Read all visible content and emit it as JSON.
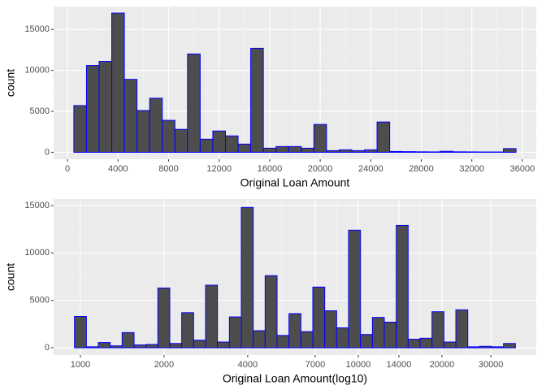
{
  "chart_data": [
    {
      "type": "histogram",
      "xlabel": "Original Loan Amount",
      "ylabel": "count",
      "bins": [
        500,
        1500,
        2500,
        3500,
        4500,
        5500,
        6500,
        7500,
        8500,
        9500,
        10500,
        11500,
        12500,
        13500,
        14500,
        15500,
        16500,
        17500,
        18500,
        19500,
        20500,
        21500,
        22500,
        23500,
        24500,
        25500,
        26500,
        27500,
        28500,
        29500,
        30500,
        31500,
        32500,
        33500,
        34500,
        35500
      ],
      "values": [
        5700,
        10600,
        11100,
        17000,
        8900,
        5100,
        6600,
        3900,
        2800,
        12000,
        1600,
        2600,
        2000,
        1000,
        12700,
        500,
        700,
        700,
        500,
        3400,
        200,
        300,
        200,
        300,
        3700,
        100,
        80,
        60,
        50,
        120,
        60,
        50,
        40,
        40,
        450
      ],
      "color": "#4d4d4d",
      "edgecolor": "#0000ff",
      "log_x": false,
      "grid": true,
      "xlim": [
        -1100,
        37100
      ],
      "ylim": [
        -850,
        17800
      ],
      "xticks": [
        0,
        4000,
        8000,
        12000,
        16000,
        20000,
        24000,
        28000,
        32000,
        36000
      ],
      "yticks": [
        0,
        5000,
        10000,
        15000
      ]
    },
    {
      "type": "histogram",
      "xlabel": "Original Loan Amount(log10)",
      "ylabel": "count",
      "bins": [
        952,
        1051,
        1160,
        1280,
        1413,
        1560,
        1722,
        1900,
        2097,
        2315,
        2555,
        2821,
        3113,
        3437,
        3793,
        4187,
        4622,
        5102,
        5631,
        6216,
        6861,
        7573,
        8359,
        9227,
        10185,
        11242,
        12409,
        13697,
        15119,
        16688,
        18421,
        20333,
        22444,
        24774,
        27346,
        30185,
        33318,
        36777
      ],
      "values": [
        3300,
        100,
        550,
        200,
        1600,
        300,
        350,
        6300,
        450,
        3700,
        800,
        6600,
        600,
        3250,
        14800,
        1800,
        7600,
        1300,
        3600,
        1700,
        6400,
        3900,
        2100,
        12400,
        1400,
        3200,
        2700,
        12900,
        900,
        1000,
        3800,
        600,
        4000,
        100,
        150,
        100,
        450
      ],
      "color": "#4d4d4d",
      "edgecolor": "#0000ff",
      "log_x": true,
      "grid": true,
      "xlim": [
        801,
        43700
      ],
      "ylim": [
        -770,
        15680
      ],
      "xticks": [
        1000,
        2000,
        4000,
        7000,
        10000,
        14000,
        20000,
        30000
      ],
      "yticks": [
        0,
        5000,
        10000,
        15000
      ]
    }
  ]
}
